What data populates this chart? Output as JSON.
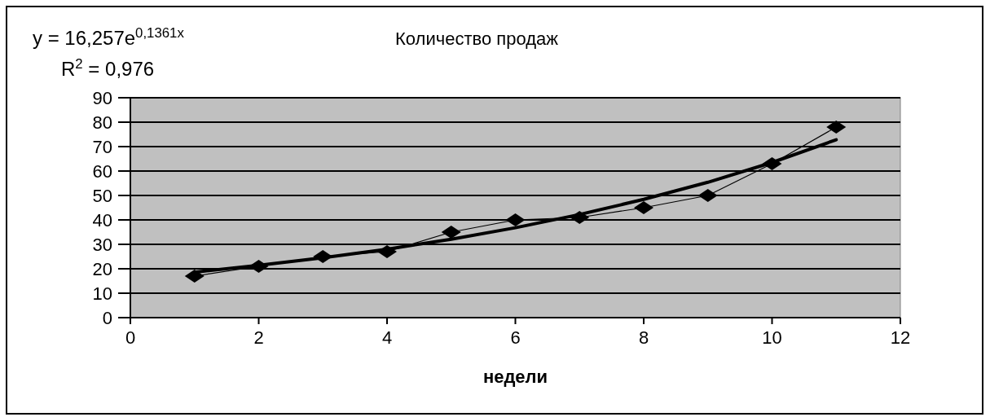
{
  "chart_data": {
    "type": "line",
    "title": "Количество продаж",
    "xlabel": "недели",
    "annotations": [
      "y = 16,257e$^{0,1361x}$",
      "R$^{2}$ = 0,976"
    ],
    "x": [
      1,
      2,
      3,
      4,
      5,
      6,
      7,
      8,
      9,
      10,
      11
    ],
    "series": [
      {
        "color": "#000000",
        "values": [
          17,
          21,
          25,
          27,
          35,
          40,
          41,
          45,
          50,
          63,
          78
        ],
        "marker": "diamond",
        "line_style": "solid"
      },
      {
        "color": "#000000",
        "values": [
          18.6,
          21.4,
          24.5,
          28.0,
          32.1,
          36.8,
          42.2,
          48.4,
          55.4,
          63.5,
          72.8
        ],
        "marker": "none",
        "line_style": "solid"
      }
    ],
    "xlim": [
      0,
      12
    ],
    "xticks": [
      0,
      2,
      4,
      6,
      8,
      10,
      12
    ],
    "ylim": [
      0,
      90
    ],
    "yticks": [
      0,
      10,
      20,
      30,
      40,
      50,
      60,
      70,
      80,
      90
    ],
    "grid": "y"
  }
}
